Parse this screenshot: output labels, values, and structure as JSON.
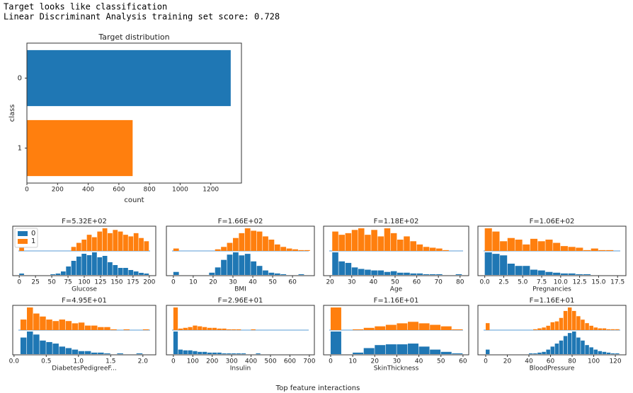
{
  "output_lines": [
    "Target looks like classification",
    "Linear Discriminant Analysis training set score: 0.728"
  ],
  "chart_data": [
    {
      "type": "barh",
      "title": "Target distribution",
      "xlabel": "count",
      "ylabel": "class",
      "categories": [
        "0",
        "1"
      ],
      "values": [
        1330,
        690
      ],
      "colors": [
        "#1f77b4",
        "#ff7f0e"
      ],
      "xlim": [
        0,
        1400
      ],
      "xticks": [
        0,
        200,
        400,
        600,
        800,
        1000,
        1200
      ]
    },
    {
      "type": "histogram",
      "title": "F=5.32E+02",
      "xlabel": "Glucose",
      "legend": "upper left",
      "bins": [
        0,
        8,
        16,
        24,
        32,
        40,
        48,
        56,
        64,
        72,
        80,
        88,
        96,
        104,
        112,
        120,
        128,
        136,
        144,
        152,
        160,
        168,
        176,
        184,
        192,
        200
      ],
      "series": [
        {
          "name": "0",
          "color": "#1f77b4",
          "values": [
            2,
            0,
            0,
            0,
            0,
            0,
            1,
            2,
            5,
            12,
            20,
            26,
            30,
            28,
            32,
            25,
            27,
            18,
            14,
            10,
            10,
            7,
            5,
            3,
            2
          ]
        },
        {
          "name": "1",
          "color": "#ff7f0e",
          "values": [
            4,
            0,
            0,
            0,
            0,
            0,
            0,
            0,
            0,
            0,
            5,
            10,
            14,
            20,
            17,
            24,
            28,
            22,
            26,
            24,
            20,
            18,
            22,
            16,
            12
          ]
        }
      ],
      "xlim": [
        -10,
        210
      ],
      "xticks": [
        0,
        25,
        50,
        75,
        100,
        125,
        150,
        175,
        200
      ]
    },
    {
      "type": "histogram",
      "title": "F=1.66E+02",
      "xlabel": "BMI",
      "bins": [
        0,
        3,
        6,
        9,
        12,
        15,
        18,
        21,
        24,
        27,
        30,
        33,
        36,
        39,
        42,
        45,
        48,
        51,
        54,
        57,
        60,
        63,
        66,
        69
      ],
      "series": [
        {
          "name": "0",
          "color": "#1f77b4",
          "values": [
            4,
            0,
            0,
            0,
            0,
            0,
            3,
            10,
            20,
            27,
            30,
            26,
            28,
            18,
            12,
            6,
            3,
            2,
            1,
            0,
            0,
            1,
            0
          ]
        },
        {
          "name": "1",
          "color": "#ff7f0e",
          "values": [
            3,
            0,
            0,
            0,
            0,
            0,
            0,
            2,
            5,
            10,
            16,
            22,
            28,
            25,
            24,
            18,
            14,
            8,
            5,
            3,
            2,
            1,
            1
          ]
        }
      ],
      "xlim": [
        -3.5,
        71
      ],
      "xticks": [
        0,
        10,
        20,
        30,
        40,
        50,
        60
      ]
    },
    {
      "type": "histogram",
      "title": "F=1.18E+02",
      "xlabel": "Age",
      "bins": [
        21,
        24,
        27,
        30,
        33,
        36,
        39,
        42,
        45,
        48,
        51,
        54,
        57,
        60,
        63,
        66,
        69,
        72,
        75,
        78,
        81
      ],
      "series": [
        {
          "name": "0",
          "color": "#1f77b4",
          "values": [
            30,
            18,
            16,
            10,
            8,
            7,
            6,
            6,
            4,
            5,
            3,
            3,
            2,
            2,
            1,
            1,
            1,
            0,
            0,
            1
          ]
        },
        {
          "name": "1",
          "color": "#ff7f0e",
          "values": [
            24,
            20,
            22,
            26,
            28,
            20,
            26,
            18,
            28,
            22,
            14,
            18,
            12,
            8,
            5,
            4,
            3,
            1,
            0,
            0
          ]
        }
      ],
      "xlim": [
        17,
        84
      ],
      "xticks": [
        20,
        30,
        40,
        50,
        60,
        70,
        80
      ]
    },
    {
      "type": "histogram",
      "title": "F=1.06E+02",
      "xlabel": "Pregnancies",
      "bins": [
        0,
        1,
        2,
        3,
        4,
        5,
        6,
        7,
        8,
        9,
        10,
        11,
        12,
        13,
        14,
        15,
        16,
        17
      ],
      "series": [
        {
          "name": "0",
          "color": "#1f77b4",
          "values": [
            30,
            28,
            26,
            15,
            12,
            12,
            7,
            6,
            4,
            3,
            2,
            2,
            1,
            1,
            0,
            0,
            0
          ]
        },
        {
          "name": "1",
          "color": "#ff7f0e",
          "values": [
            28,
            24,
            12,
            16,
            14,
            8,
            15,
            12,
            14,
            10,
            6,
            5,
            4,
            1,
            3,
            1,
            1
          ]
        }
      ],
      "xlim": [
        -0.9,
        18.6
      ],
      "xticks": [
        {
          "value": 0,
          "label": "0.0"
        },
        2.5,
        {
          "value": 5,
          "label": "5.0"
        },
        7.5,
        {
          "value": 10,
          "label": "10.0"
        },
        12.5,
        {
          "value": 15,
          "label": "15.0"
        },
        17.5
      ]
    },
    {
      "type": "histogram",
      "title": "F=4.95E+01",
      "xlabel": "DiabetesPedigreeF...",
      "bins": [
        0.1,
        0.2,
        0.3,
        0.4,
        0.5,
        0.6,
        0.7,
        0.8,
        0.9,
        1.0,
        1.1,
        1.2,
        1.3,
        1.4,
        1.5,
        1.6,
        1.7,
        1.8,
        1.9,
        2.0,
        2.1
      ],
      "series": [
        {
          "name": "0",
          "color": "#1f77b4",
          "values": [
            22,
            30,
            26,
            18,
            16,
            14,
            10,
            8,
            6,
            4,
            4,
            2,
            2,
            1,
            0,
            1,
            0,
            0,
            1,
            0
          ]
        },
        {
          "name": "1",
          "color": "#ff7f0e",
          "values": [
            14,
            30,
            22,
            18,
            14,
            12,
            14,
            12,
            9,
            10,
            6,
            6,
            4,
            4,
            1,
            0,
            1,
            0,
            0,
            1
          ]
        }
      ],
      "xlim": [
        -0.02,
        2.2
      ],
      "xticks": [
        {
          "value": 0,
          "label": "0.0"
        },
        0.5,
        {
          "value": 1,
          "label": "1.0"
        },
        1.5,
        {
          "value": 2,
          "label": "2.0"
        }
      ]
    },
    {
      "type": "histogram",
      "title": "F=2.96E+01",
      "xlabel": "Insulin",
      "bins": [
        0,
        25,
        50,
        75,
        100,
        125,
        150,
        175,
        200,
        225,
        250,
        275,
        300,
        325,
        350,
        375,
        400,
        425,
        450,
        475,
        500,
        525,
        550,
        575,
        600,
        625,
        650,
        675,
        700
      ],
      "series": [
        {
          "name": "0",
          "color": "#1f77b4",
          "values": [
            30,
            6,
            5,
            5,
            4,
            3,
            3,
            2,
            2,
            2,
            1,
            1,
            1,
            1,
            1,
            0,
            0,
            1,
            0,
            0,
            0,
            0,
            0,
            0,
            0,
            0,
            0,
            0
          ]
        },
        {
          "name": "1",
          "color": "#ff7f0e",
          "values": [
            30,
            2,
            3,
            4,
            6,
            5,
            4,
            3,
            3,
            2,
            2,
            1,
            1,
            1,
            0,
            0,
            1,
            0,
            0,
            0,
            0,
            0,
            0,
            0,
            0,
            0,
            0,
            0
          ]
        }
      ],
      "xlim": [
        -36,
        726
      ],
      "xticks": [
        0,
        100,
        200,
        300,
        400,
        500,
        600,
        700
      ]
    },
    {
      "type": "histogram",
      "title": "F=1.16E+01",
      "xlabel": "SkinThickness",
      "bins": [
        0,
        5,
        10,
        15,
        20,
        25,
        30,
        35,
        40,
        45,
        50,
        55,
        60
      ],
      "series": [
        {
          "name": "0",
          "color": "#1f77b4",
          "values": [
            30,
            0,
            2,
            8,
            12,
            13,
            13,
            14,
            10,
            6,
            3,
            1
          ]
        },
        {
          "name": "1",
          "color": "#ff7f0e",
          "values": [
            30,
            0,
            1,
            3,
            5,
            7,
            9,
            11,
            9,
            7,
            5,
            1
          ]
        }
      ],
      "xlim": [
        -3.2,
        62.6
      ],
      "xticks": [
        0,
        10,
        20,
        30,
        40,
        50,
        60
      ]
    },
    {
      "type": "histogram",
      "title": "F=1.16E+01",
      "xlabel": "BloodPressure",
      "bins": [
        0,
        4,
        8,
        12,
        16,
        20,
        24,
        28,
        32,
        36,
        40,
        44,
        48,
        52,
        56,
        60,
        64,
        68,
        72,
        76,
        80,
        84,
        88,
        92,
        96,
        100,
        104,
        108,
        112,
        116,
        120,
        124
      ],
      "series": [
        {
          "name": "0",
          "color": "#1f77b4",
          "values": [
            6,
            0,
            0,
            0,
            0,
            0,
            0,
            0,
            0,
            0,
            1,
            1,
            2,
            3,
            6,
            10,
            14,
            18,
            24,
            28,
            30,
            22,
            18,
            12,
            9,
            6,
            4,
            3,
            2,
            1,
            1
          ]
        },
        {
          "name": "1",
          "color": "#ff7f0e",
          "values": [
            8,
            0,
            0,
            0,
            0,
            0,
            0,
            0,
            0,
            0,
            0,
            1,
            2,
            3,
            5,
            9,
            10,
            14,
            22,
            26,
            22,
            16,
            12,
            8,
            5,
            3,
            2,
            2,
            1,
            1,
            1
          ]
        }
      ],
      "xlim": [
        -7.2,
        129.8
      ],
      "xticks": [
        0,
        20,
        40,
        60,
        80,
        100,
        120
      ]
    }
  ],
  "footer_text": "Top feature interactions"
}
